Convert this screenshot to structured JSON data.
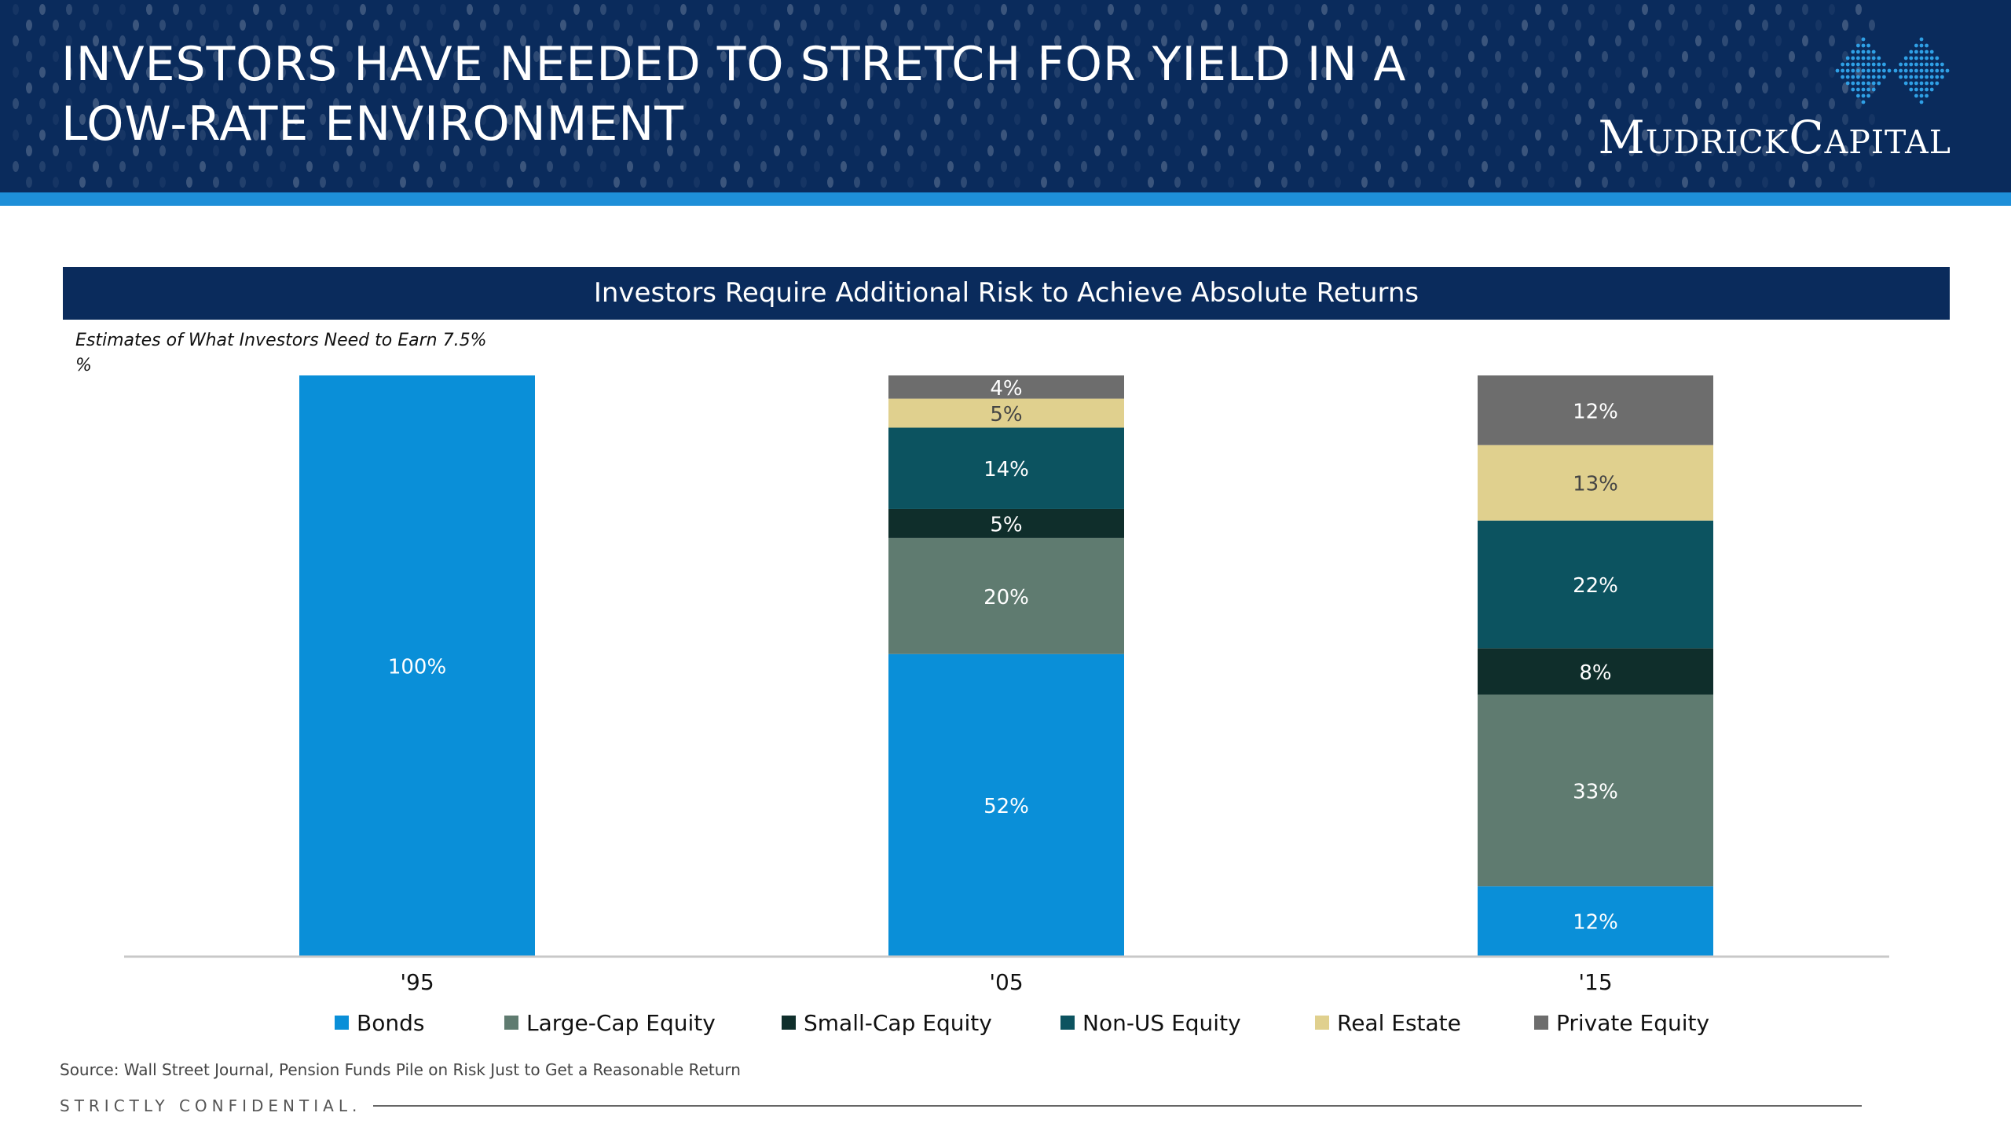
{
  "header": {
    "title_lines": [
      "INVESTORS HAVE NEEDED TO STRETCH FOR YIELD IN A",
      "LOW-RATE ENVIRONMENT"
    ],
    "logo_text": "MudrickCapital"
  },
  "colors": {
    "navy": "#0a2b5c",
    "stripe": "#1e8fd8",
    "bonds": "#0a8fd8",
    "large_cap": "#5f7b70",
    "small_cap": "#0f2e2b",
    "non_us": "#0c5360",
    "real_estate": "#e0d08e",
    "private_equity": "#6d6d6d"
  },
  "chart_data": {
    "type": "bar",
    "stacked": true,
    "title": "Investors Require Additional Risk to Achieve Absolute Returns",
    "subtitle_lines": [
      "Estimates of What Investors Need to Earn 7.5%",
      "%"
    ],
    "categories": [
      "'95",
      "'05",
      "'15"
    ],
    "ylim": [
      0,
      100
    ],
    "grid": false,
    "legend_position": "bottom",
    "series": [
      {
        "name": "Bonds",
        "color": "#0a8fd8",
        "values": [
          100,
          52,
          12
        ],
        "labels": [
          "100%",
          "52%",
          "12%"
        ]
      },
      {
        "name": "Large-Cap Equity",
        "color": "#5f7b70",
        "values": [
          0,
          20,
          33
        ],
        "labels": [
          "",
          "20%",
          "33%"
        ]
      },
      {
        "name": "Small-Cap Equity",
        "color": "#0f2e2b",
        "values": [
          0,
          5,
          8
        ],
        "labels": [
          "",
          "5%",
          "8%"
        ]
      },
      {
        "name": "Non-US Equity",
        "color": "#0c5360",
        "values": [
          0,
          14,
          22
        ],
        "labels": [
          "",
          "14%",
          "22%"
        ]
      },
      {
        "name": "Real Estate",
        "color": "#e0d08e",
        "values": [
          0,
          5,
          13
        ],
        "labels": [
          "",
          "5%",
          "13%"
        ]
      },
      {
        "name": "Private Equity",
        "color": "#6d6d6d",
        "values": [
          0,
          4,
          12
        ],
        "labels": [
          "",
          "4%",
          "12%"
        ]
      }
    ]
  },
  "footer": {
    "source": "Source: Wall Street Journal, Pension Funds Pile on Risk Just to Get a Reasonable Return",
    "confidential": "STRICTLY CONFIDENTIAL."
  }
}
